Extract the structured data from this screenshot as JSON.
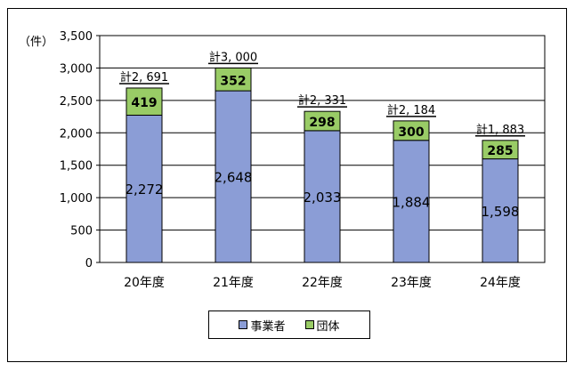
{
  "chart_data": {
    "type": "bar",
    "stacked": true,
    "ylabel": "（件）",
    "ylim": [
      0,
      3500
    ],
    "yticks": [
      0,
      500,
      1000,
      1500,
      2000,
      2500,
      3000,
      3500
    ],
    "ytick_labels": [
      "0",
      "500",
      "1,000",
      "1,500",
      "2,000",
      "2,500",
      "3,000",
      "3,500"
    ],
    "grid": true,
    "legend_position": "bottom",
    "categories": [
      "20年度",
      "21年度",
      "22年度",
      "23年度",
      "24年度"
    ],
    "series": [
      {
        "name": "事業者",
        "color": "#8b9dd6",
        "values": [
          2272,
          2648,
          2033,
          1884,
          1598
        ],
        "labels": [
          "2,272",
          "2,648",
          "2,033",
          "1,884",
          "1,598"
        ]
      },
      {
        "name": "団体",
        "color": "#99cc66",
        "values": [
          419,
          352,
          298,
          300,
          285
        ],
        "labels": [
          "419",
          "352",
          "298",
          "300",
          "285"
        ]
      }
    ],
    "totals": [
      2691,
      3000,
      2331,
      2184,
      1883
    ],
    "total_labels": [
      "計2, 691",
      "計3, 000",
      "計2, 331",
      "計2, 184",
      "計1, 883"
    ]
  }
}
